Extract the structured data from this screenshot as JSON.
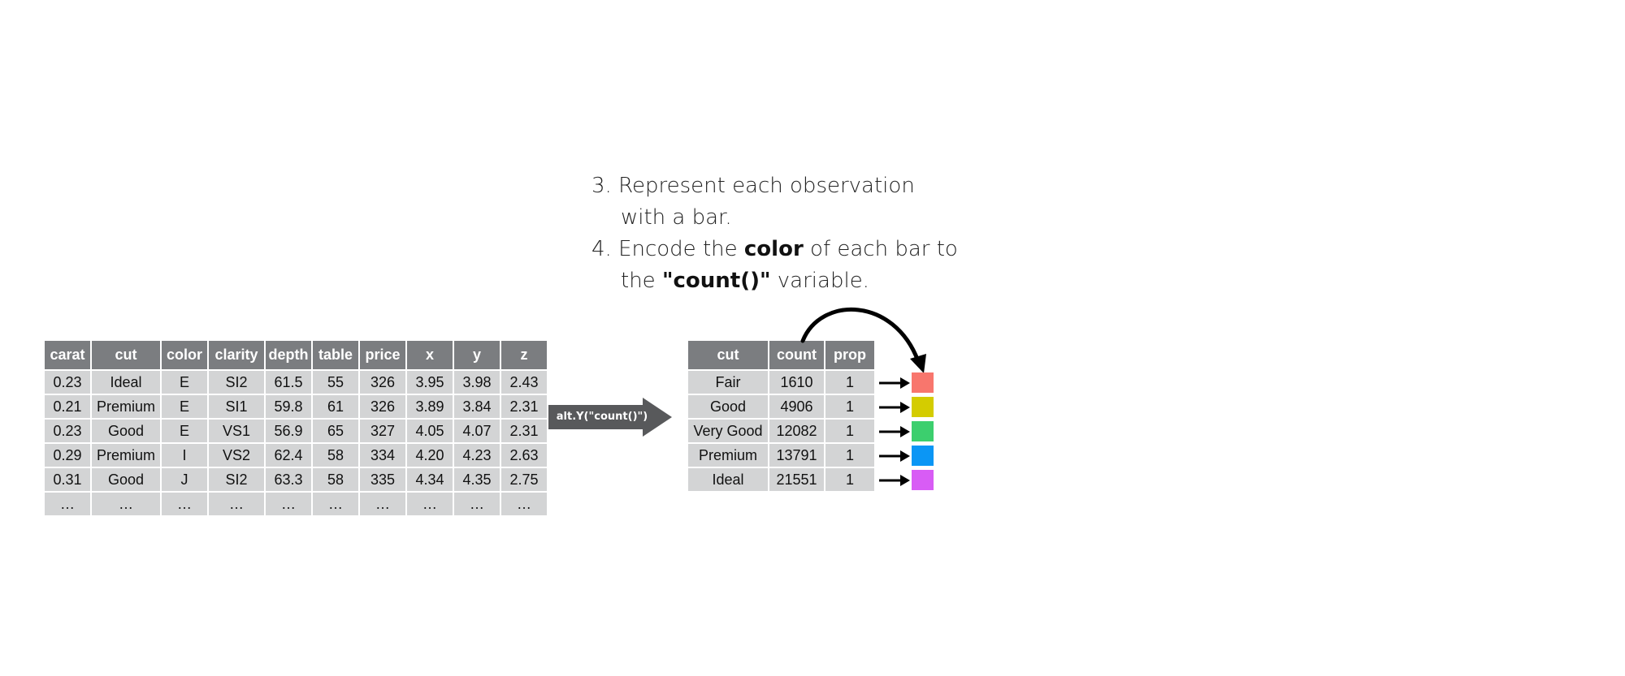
{
  "steps": {
    "step3_line1": "3. Represent each observation",
    "step3_line2": "with a bar.",
    "step4_line1_pre": "4. Encode the ",
    "step4_line1_bold": "color",
    "step4_line1_post": " of each bar to",
    "step4_line2_pre": "the ",
    "step4_line2_bold": "\"count()\"",
    "step4_line2_post": " variable."
  },
  "diamonds_table": {
    "headers": [
      "carat",
      "cut",
      "color",
      "clarity",
      "depth",
      "table",
      "price",
      "x",
      "y",
      "z"
    ],
    "rows": [
      [
        "0.23",
        "Ideal",
        "E",
        "SI2",
        "61.5",
        "55",
        "326",
        "3.95",
        "3.98",
        "2.43"
      ],
      [
        "0.21",
        "Premium",
        "E",
        "SI1",
        "59.8",
        "61",
        "326",
        "3.89",
        "3.84",
        "2.31"
      ],
      [
        "0.23",
        "Good",
        "E",
        "VS1",
        "56.9",
        "65",
        "327",
        "4.05",
        "4.07",
        "2.31"
      ],
      [
        "0.29",
        "Premium",
        "I",
        "VS2",
        "62.4",
        "58",
        "334",
        "4.20",
        "4.23",
        "2.63"
      ],
      [
        "0.31",
        "Good",
        "J",
        "SI2",
        "63.3",
        "58",
        "335",
        "4.34",
        "4.35",
        "2.75"
      ],
      [
        "…",
        "…",
        "…",
        "…",
        "…",
        "…",
        "…",
        "…",
        "…",
        "…"
      ]
    ]
  },
  "transform": {
    "label": "alt.Y(\"count()\")",
    "color": "#58595b"
  },
  "count_table": {
    "headers": [
      "cut",
      "count",
      "prop"
    ],
    "rows": [
      [
        "Fair",
        "1610",
        "1"
      ],
      [
        "Good",
        "4906",
        "1"
      ],
      [
        "Very Good",
        "12082",
        "1"
      ],
      [
        "Premium",
        "13791",
        "1"
      ],
      [
        "Ideal",
        "21551",
        "1"
      ]
    ]
  },
  "swatch_colors": [
    "#f8766d",
    "#d4cc00",
    "#3ccf6e",
    "#0b96f5",
    "#d85cf5"
  ],
  "icons": {
    "row_arrow": "arrow-right-icon",
    "curved_arrow": "curved-arrow-icon"
  }
}
